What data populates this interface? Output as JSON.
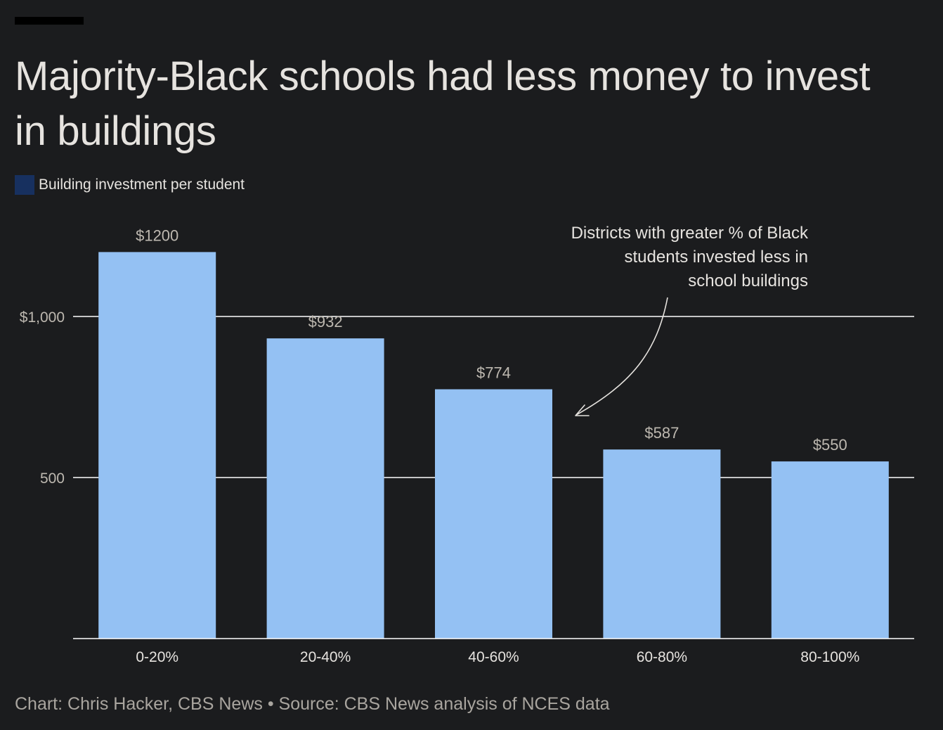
{
  "header": {
    "title": "Majority-Black schools had less money to invest in buildings"
  },
  "legend": {
    "label": "Building investment per student",
    "swatch_color": "#17305f"
  },
  "colors": {
    "background": "#1b1c1e",
    "bar": "#94c1f3",
    "text": "#e6e3df",
    "muted_text": "#bdb8b0",
    "gridline": "#ffffff"
  },
  "chart_data": {
    "type": "bar",
    "categories": [
      "0-20%",
      "20-40%",
      "40-60%",
      "60-80%",
      "80-100%"
    ],
    "series": [
      {
        "name": "Building investment per student",
        "values": [
          1200,
          932,
          774,
          587,
          550
        ]
      }
    ],
    "data_labels": [
      "$1200",
      "$932",
      "$774",
      "$587",
      "$550"
    ],
    "ylim": [
      0,
      1300
    ],
    "yticks": [
      500,
      1000
    ],
    "ytick_labels": [
      "500",
      "$1,000"
    ],
    "grid": true,
    "legend_position": "top-left",
    "annotation": {
      "lines": [
        "Districts with greater % of Black",
        "students invested less in",
        "school buildings"
      ]
    }
  },
  "footer": {
    "credit": "Chart: Chris Hacker, CBS News • Source: CBS News analysis of NCES data"
  }
}
